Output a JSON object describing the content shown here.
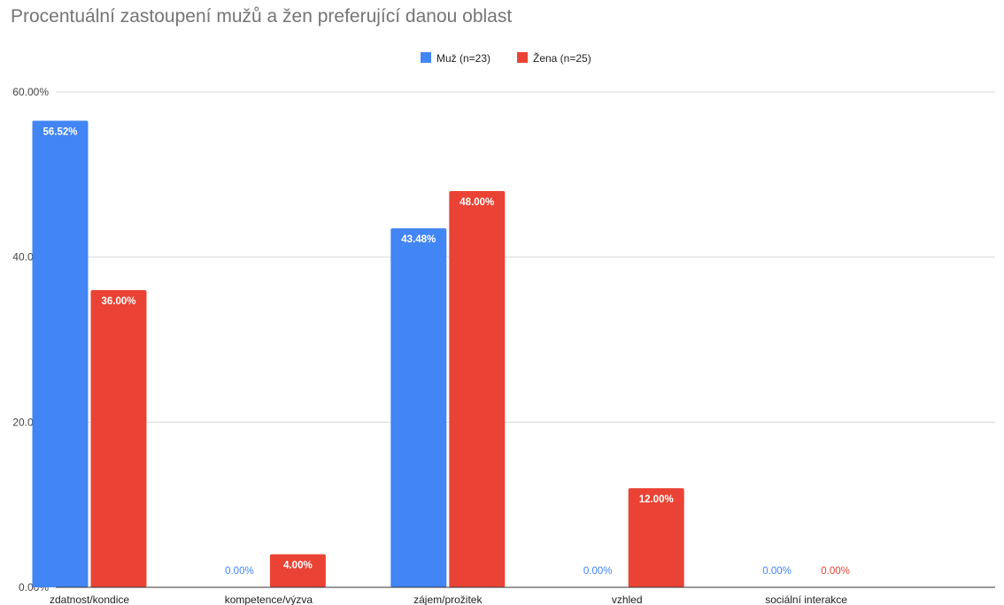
{
  "chart_data": {
    "type": "bar",
    "title": "Procentuální zastoupení mužů a žen preferující danou oblast",
    "categories": [
      "zdatnost/kondice",
      "kompetence/výzva",
      "zájem/prožitek",
      "vzhled",
      "sociální interakce"
    ],
    "series": [
      {
        "name": "Muž (n=23)",
        "color": "#4285F4",
        "values": [
          56.52,
          0,
          43.48,
          0,
          0
        ],
        "labels": [
          "56.52%",
          "0.00%",
          "43.48%",
          "0.00%",
          "0.00%"
        ]
      },
      {
        "name": "Žena (n=25)",
        "color": "#EA4335",
        "values": [
          36.0,
          4.0,
          48.0,
          12.0,
          0
        ],
        "labels": [
          "36.00%",
          "4.00%",
          "48.00%",
          "12.00%",
          "0.00%"
        ]
      }
    ],
    "ylim": [
      0,
      60
    ],
    "yticks": [
      0,
      20,
      40,
      60
    ],
    "ytick_labels": [
      "0.00%",
      "20.00%",
      "40.00%",
      "60.00%"
    ],
    "xlabel": "",
    "ylabel": "",
    "grid": true,
    "legend_position": "top-center"
  }
}
